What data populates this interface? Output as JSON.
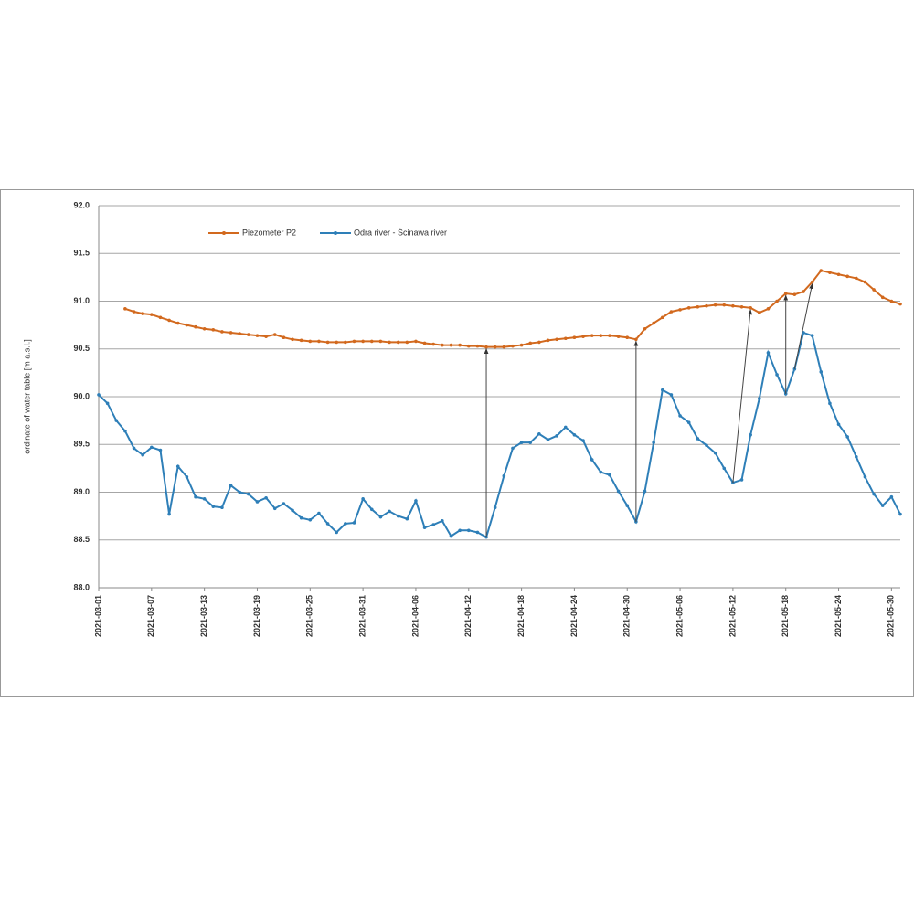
{
  "chart_data": {
    "type": "line",
    "ylabel": "ordinate of water table [m a.s.l.]",
    "x": [
      "2021-03-01",
      "2021-03-02",
      "2021-03-03",
      "2021-03-04",
      "2021-03-05",
      "2021-03-06",
      "2021-03-07",
      "2021-03-08",
      "2021-03-09",
      "2021-03-10",
      "2021-03-11",
      "2021-03-12",
      "2021-03-13",
      "2021-03-14",
      "2021-03-15",
      "2021-03-16",
      "2021-03-17",
      "2021-03-18",
      "2021-03-19",
      "2021-03-20",
      "2021-03-21",
      "2021-03-22",
      "2021-03-23",
      "2021-03-24",
      "2021-03-25",
      "2021-03-26",
      "2021-03-27",
      "2021-03-28",
      "2021-03-29",
      "2021-03-30",
      "2021-03-31",
      "2021-04-01",
      "2021-04-02",
      "2021-04-03",
      "2021-04-04",
      "2021-04-05",
      "2021-04-06",
      "2021-04-07",
      "2021-04-08",
      "2021-04-09",
      "2021-04-10",
      "2021-04-11",
      "2021-04-12",
      "2021-04-13",
      "2021-04-14",
      "2021-04-15",
      "2021-04-16",
      "2021-04-17",
      "2021-04-18",
      "2021-04-19",
      "2021-04-20",
      "2021-04-21",
      "2021-04-22",
      "2021-04-23",
      "2021-04-24",
      "2021-04-25",
      "2021-04-26",
      "2021-04-27",
      "2021-04-28",
      "2021-04-29",
      "2021-04-30",
      "2021-05-01",
      "2021-05-02",
      "2021-05-03",
      "2021-05-04",
      "2021-05-05",
      "2021-05-06",
      "2021-05-07",
      "2021-05-08",
      "2021-05-09",
      "2021-05-10",
      "2021-05-11",
      "2021-05-12",
      "2021-05-13",
      "2021-05-14",
      "2021-05-15",
      "2021-05-16",
      "2021-05-17",
      "2021-05-18",
      "2021-05-19",
      "2021-05-20",
      "2021-05-21",
      "2021-05-22",
      "2021-05-23",
      "2021-05-24",
      "2021-05-25",
      "2021-05-26",
      "2021-05-27",
      "2021-05-28",
      "2021-05-29",
      "2021-05-30",
      "2021-05-31"
    ],
    "series": [
      {
        "name": "Piezometer P2",
        "color": "#d2691e",
        "values": [
          null,
          null,
          null,
          90.92,
          90.89,
          90.87,
          90.86,
          90.83,
          90.8,
          90.77,
          90.75,
          90.73,
          90.71,
          90.7,
          90.68,
          90.67,
          90.66,
          90.65,
          90.64,
          90.63,
          90.65,
          90.62,
          90.6,
          90.59,
          90.58,
          90.58,
          90.57,
          90.57,
          90.57,
          90.58,
          90.58,
          90.58,
          90.58,
          90.57,
          90.57,
          90.57,
          90.58,
          90.56,
          90.55,
          90.54,
          90.54,
          90.54,
          90.53,
          90.53,
          90.52,
          90.52,
          90.52,
          90.53,
          90.54,
          90.56,
          90.57,
          90.59,
          90.6,
          90.61,
          90.62,
          90.63,
          90.64,
          90.64,
          90.64,
          90.63,
          90.62,
          90.6,
          90.71,
          90.77,
          90.83,
          90.89,
          90.91,
          90.93,
          90.94,
          90.95,
          90.96,
          90.96,
          90.95,
          90.94,
          90.93,
          90.88,
          90.92,
          91.0,
          91.08,
          91.07,
          91.1,
          91.2,
          91.32,
          91.3,
          91.28,
          91.26,
          91.24,
          91.2,
          91.12,
          91.04,
          91.0,
          90.97
        ]
      },
      {
        "name": "Odra river - Ścinawa river",
        "color": "#2e7fb8",
        "values": [
          90.02,
          89.93,
          89.75,
          89.64,
          89.46,
          89.39,
          89.47,
          89.44,
          88.77,
          89.27,
          89.16,
          88.95,
          88.93,
          88.85,
          88.84,
          89.07,
          89.0,
          88.98,
          88.9,
          88.94,
          88.83,
          88.88,
          88.81,
          88.73,
          88.71,
          88.78,
          88.67,
          88.58,
          88.67,
          88.68,
          88.93,
          88.82,
          88.74,
          88.8,
          88.75,
          88.72,
          88.91,
          88.63,
          88.66,
          88.7,
          88.54,
          88.6,
          88.6,
          88.58,
          88.53,
          88.84,
          89.17,
          89.46,
          89.52,
          89.52,
          89.61,
          89.55,
          89.59,
          89.68,
          89.6,
          89.54,
          89.34,
          89.21,
          89.18,
          89.01,
          88.86,
          88.69,
          89.01,
          89.52,
          90.07,
          90.02,
          89.8,
          89.73,
          89.56,
          89.49,
          89.41,
          89.25,
          89.1,
          89.13,
          89.6,
          89.98,
          90.46,
          90.23,
          90.03,
          90.29,
          90.67,
          90.64,
          90.26,
          89.93,
          89.71,
          89.58,
          89.37,
          89.16,
          88.98,
          88.86,
          88.95,
          88.77
        ]
      }
    ],
    "xlim": [
      "2021-03-01",
      "2021-05-31"
    ],
    "xticks": [
      "2021-03-01",
      "2021-03-07",
      "2021-03-13",
      "2021-03-19",
      "2021-03-25",
      "2021-03-31",
      "2021-04-06",
      "2021-04-12",
      "2021-04-18",
      "2021-04-24",
      "2021-04-30",
      "2021-05-06",
      "2021-05-12",
      "2021-05-18",
      "2021-05-24",
      "2021-05-30"
    ],
    "ylim": [
      88,
      92
    ],
    "yticks": [
      {
        "value": 88,
        "label": "88.0"
      },
      {
        "value": 88.5,
        "label": "88.5"
      },
      {
        "value": 89,
        "label": "89.0"
      },
      {
        "value": 89.5,
        "label": "89.5"
      },
      {
        "value": 90,
        "label": "90.0"
      },
      {
        "value": 90.5,
        "label": "90.5"
      },
      {
        "value": 91,
        "label": "91.0"
      },
      {
        "value": 91.5,
        "label": "91.5"
      },
      {
        "value": 92,
        "label": "92.0"
      }
    ],
    "grid": true,
    "arrows": [
      {
        "from": "2021-04-14",
        "to": "2021-04-14"
      },
      {
        "from": "2021-05-01",
        "to": "2021-05-01"
      },
      {
        "from": "2021-05-12",
        "to": "2021-05-14"
      },
      {
        "from": "2021-05-18",
        "to": "2021-05-18"
      },
      {
        "from": "2021-05-19",
        "to": "2021-05-21"
      }
    ]
  }
}
